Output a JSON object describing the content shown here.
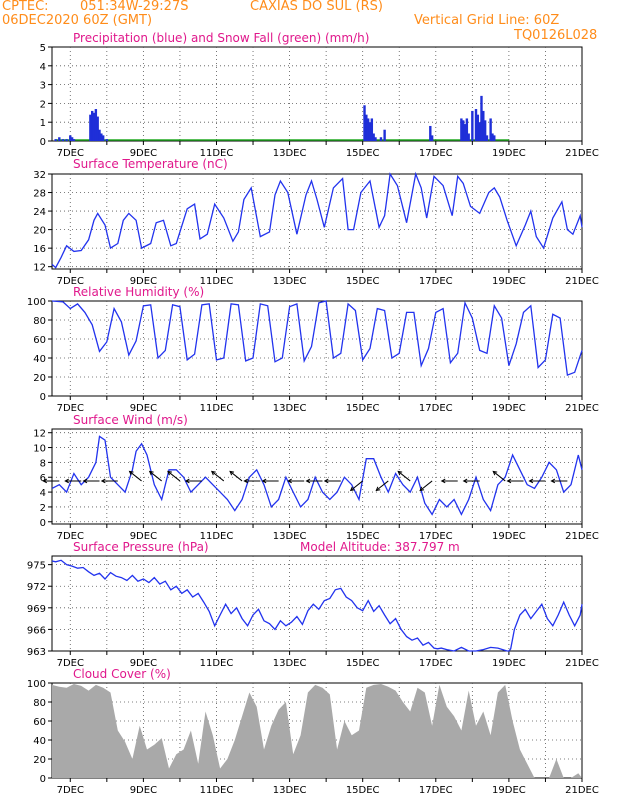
{
  "header": {
    "source": "CPTEC:",
    "coords": "051:34W-29:27S",
    "location": "CAXIAS DO SUL (RS)",
    "run": "06DEC2020 60Z (GMT)",
    "grid_note": "Vertical Grid Line: 60Z",
    "model": "TQ0126L028"
  },
  "colors": {
    "header": "#ff8c1a",
    "title": "#e0188c",
    "line": "#2233ee",
    "precip": "#1f2fd8",
    "snow": "#22aa22",
    "cloud": "#a9a9a9"
  },
  "chart_data": [
    {
      "type": "bar",
      "title": "Precipitation (blue) and Snow Fall (green) (mm/h)",
      "x_ticks": [
        "7DEC",
        "9DEC",
        "11DEC",
        "13DEC",
        "15DEC",
        "17DEC",
        "19DEC",
        "21DEC"
      ],
      "y_ticks": [
        "0",
        "1",
        "2",
        "3",
        "4",
        "5"
      ],
      "ylim": [
        0,
        5
      ],
      "xlim": [
        6.5,
        21.0
      ],
      "snow_values": [],
      "series": [
        {
          "name": "Precipitation",
          "x": [
            6.6,
            6.7,
            6.8,
            6.9,
            7.0,
            7.05,
            7.1,
            7.55,
            7.6,
            7.65,
            7.7,
            7.75,
            7.8,
            7.85,
            7.9,
            8.0,
            15.05,
            15.1,
            15.15,
            15.2,
            15.25,
            15.3,
            15.35,
            15.5,
            15.6,
            16.85,
            16.9,
            17.7,
            17.75,
            17.8,
            17.85,
            17.9,
            18.0,
            18.1,
            18.15,
            18.2,
            18.25,
            18.3,
            18.35,
            18.4,
            18.5,
            18.55,
            18.6
          ],
          "values": [
            0.1,
            0.2,
            0.1,
            0.1,
            0.3,
            0.2,
            0.1,
            1.4,
            1.6,
            1.5,
            1.7,
            1.3,
            0.6,
            0.4,
            0.3,
            0.1,
            1.9,
            1.4,
            1.2,
            1.0,
            1.2,
            0.4,
            0.2,
            0.2,
            0.6,
            0.8,
            0.3,
            1.2,
            1.1,
            0.9,
            1.2,
            0.4,
            1.6,
            1.7,
            1.4,
            1.0,
            2.4,
            1.6,
            1.1,
            0.3,
            1.2,
            0.4,
            0.3
          ]
        }
      ]
    },
    {
      "type": "line",
      "title": "Surface Temperature (nC)",
      "x_ticks": [
        "7DEC",
        "9DEC",
        "11DEC",
        "13DEC",
        "15DEC",
        "17DEC",
        "19DEC",
        "21DEC"
      ],
      "y_ticks": [
        "12",
        "16",
        "20",
        "24",
        "28",
        "32"
      ],
      "ylim": [
        11.5,
        32
      ],
      "xlim": [
        6.5,
        21.0
      ],
      "x": [
        6.5,
        6.6,
        6.75,
        6.9,
        7.1,
        7.3,
        7.5,
        7.65,
        7.75,
        7.95,
        8.1,
        8.3,
        8.45,
        8.6,
        8.8,
        8.95,
        9.2,
        9.35,
        9.55,
        9.75,
        9.9,
        10.2,
        10.4,
        10.55,
        10.75,
        10.95,
        11.2,
        11.45,
        11.6,
        11.75,
        11.95,
        12.2,
        12.45,
        12.6,
        12.75,
        12.95,
        13.2,
        13.45,
        13.6,
        13.75,
        13.95,
        14.2,
        14.45,
        14.6,
        14.75,
        14.95,
        15.2,
        15.45,
        15.6,
        15.75,
        15.95,
        16.2,
        16.45,
        16.6,
        16.75,
        16.95,
        17.2,
        17.45,
        17.6,
        17.75,
        17.95,
        18.2,
        18.45,
        18.6,
        18.75,
        18.95,
        19.2,
        19.45,
        19.6,
        19.75,
        19.95,
        20.2,
        20.45,
        20.6,
        20.75,
        20.95,
        21.0
      ],
      "series": [
        {
          "name": "Temperature",
          "values": [
            12.5,
            11.8,
            14,
            16.5,
            15.3,
            15.5,
            17.8,
            22,
            23.5,
            21,
            16,
            17,
            22,
            23.5,
            22,
            16,
            17,
            21.5,
            22,
            16.5,
            17,
            24.5,
            25.5,
            18,
            19,
            25.5,
            22.5,
            17.5,
            19.5,
            26.5,
            29,
            18.5,
            19.5,
            27.5,
            30.5,
            28,
            19,
            27.5,
            30.5,
            26.5,
            20.5,
            29,
            31,
            20,
            20,
            28,
            30.5,
            20.5,
            23,
            32,
            29.5,
            21.5,
            32,
            29,
            22.5,
            31.5,
            29.5,
            23,
            31.5,
            30,
            25,
            23.5,
            28,
            29,
            27,
            22,
            16.5,
            21,
            24,
            18.5,
            16,
            22.5,
            26,
            20,
            19,
            23,
            20.5
          ]
        }
      ]
    },
    {
      "type": "line",
      "title": "Relative Humidity (%)",
      "x_ticks": [
        "7DEC",
        "9DEC",
        "11DEC",
        "13DEC",
        "15DEC",
        "17DEC",
        "19DEC",
        "21DEC"
      ],
      "y_ticks": [
        "0",
        "20",
        "40",
        "60",
        "80",
        "100"
      ],
      "ylim": [
        0,
        100
      ],
      "xlim": [
        6.5,
        21.0
      ],
      "x": [
        6.5,
        6.8,
        7.0,
        7.2,
        7.4,
        7.6,
        7.8,
        8.0,
        8.2,
        8.4,
        8.6,
        8.8,
        9.0,
        9.2,
        9.4,
        9.6,
        9.8,
        10.0,
        10.2,
        10.4,
        10.6,
        10.8,
        11.0,
        11.2,
        11.4,
        11.6,
        11.8,
        12.0,
        12.2,
        12.4,
        12.6,
        12.8,
        13.0,
        13.2,
        13.4,
        13.6,
        13.8,
        14.0,
        14.2,
        14.4,
        14.6,
        14.8,
        15.0,
        15.2,
        15.4,
        15.6,
        15.8,
        16.0,
        16.2,
        16.4,
        16.6,
        16.8,
        17.0,
        17.2,
        17.4,
        17.6,
        17.8,
        18.0,
        18.2,
        18.4,
        18.6,
        18.8,
        19.0,
        19.2,
        19.4,
        19.6,
        19.8,
        20.0,
        20.2,
        20.4,
        20.6,
        20.8,
        21.0
      ],
      "series": [
        {
          "name": "Humidity",
          "values": [
            100,
            99,
            92,
            97,
            88,
            75,
            47,
            57,
            92,
            78,
            43,
            58,
            95,
            96,
            40,
            48,
            96,
            94,
            38,
            44,
            96,
            97,
            38,
            40,
            97,
            96,
            37,
            40,
            97,
            95,
            36,
            40,
            94,
            97,
            37,
            52,
            98,
            100,
            40,
            45,
            97,
            90,
            38,
            50,
            92,
            90,
            40,
            45,
            88,
            88,
            32,
            50,
            88,
            92,
            35,
            45,
            98,
            82,
            48,
            45,
            95,
            82,
            32,
            55,
            88,
            95,
            30,
            38,
            86,
            82,
            22,
            25,
            48
          ]
        }
      ]
    },
    {
      "type": "line",
      "title": "Surface Wind (m/s)",
      "x_ticks": [
        "7DEC",
        "9DEC",
        "11DEC",
        "13DEC",
        "15DEC",
        "17DEC",
        "19DEC",
        "21DEC"
      ],
      "y_ticks": [
        "0",
        "2",
        "4",
        "6",
        "8",
        "10",
        "12"
      ],
      "ylim": [
        -0.3,
        12.5
      ],
      "xlim": [
        6.5,
        21.0
      ],
      "x": [
        6.5,
        6.7,
        6.9,
        7.1,
        7.3,
        7.5,
        7.7,
        7.8,
        7.95,
        8.1,
        8.3,
        8.5,
        8.7,
        8.8,
        8.95,
        9.1,
        9.3,
        9.5,
        9.7,
        9.9,
        10.1,
        10.3,
        10.5,
        10.7,
        10.9,
        11.1,
        11.3,
        11.5,
        11.7,
        11.9,
        12.1,
        12.3,
        12.5,
        12.7,
        12.9,
        13.1,
        13.3,
        13.5,
        13.7,
        13.9,
        14.1,
        14.3,
        14.5,
        14.7,
        14.9,
        15.1,
        15.3,
        15.5,
        15.7,
        15.9,
        16.1,
        16.3,
        16.5,
        16.7,
        16.9,
        17.1,
        17.3,
        17.5,
        17.7,
        17.9,
        18.1,
        18.3,
        18.5,
        18.7,
        18.9,
        19.1,
        19.3,
        19.5,
        19.7,
        19.9,
        20.1,
        20.3,
        20.5,
        20.7,
        20.9,
        21.0
      ],
      "series": [
        {
          "name": "Wind",
          "values": [
            4.5,
            5,
            4,
            6.5,
            5,
            6,
            8,
            11.5,
            11,
            6,
            5,
            4,
            7,
            9.5,
            10.5,
            9,
            5,
            3,
            7,
            7,
            6,
            4,
            5,
            6,
            5,
            4,
            3,
            1.5,
            3,
            6,
            7,
            5,
            2,
            3,
            6,
            4,
            2,
            3,
            6,
            4,
            3,
            4,
            6,
            5,
            3,
            8.5,
            8.5,
            6,
            4,
            6.5,
            5,
            4,
            6,
            2.5,
            1,
            3,
            2,
            3,
            1,
            3,
            6,
            3,
            1.5,
            5,
            6,
            9,
            7,
            5,
            4.5,
            6,
            8,
            7,
            4,
            5,
            9,
            7
          ]
        }
      ],
      "vectors": [
        {
          "x": 6.7,
          "dir": "W"
        },
        {
          "x": 7.3,
          "dir": "W"
        },
        {
          "x": 7.8,
          "dir": "W"
        },
        {
          "x": 8.3,
          "dir": "W"
        },
        {
          "x": 8.95,
          "dir": "NW"
        },
        {
          "x": 9.5,
          "dir": "NW"
        },
        {
          "x": 10.0,
          "dir": "NW"
        },
        {
          "x": 10.6,
          "dir": "W"
        },
        {
          "x": 11.2,
          "dir": "NW"
        },
        {
          "x": 11.7,
          "dir": "NW"
        },
        {
          "x": 12.2,
          "dir": "W"
        },
        {
          "x": 12.7,
          "dir": "W"
        },
        {
          "x": 13.4,
          "dir": "W"
        },
        {
          "x": 13.9,
          "dir": "W"
        },
        {
          "x": 14.4,
          "dir": "W"
        },
        {
          "x": 15.0,
          "dir": "SW"
        },
        {
          "x": 15.7,
          "dir": "SW"
        },
        {
          "x": 16.3,
          "dir": "NW"
        },
        {
          "x": 16.9,
          "dir": "SW"
        },
        {
          "x": 17.6,
          "dir": "W"
        },
        {
          "x": 18.2,
          "dir": "W"
        },
        {
          "x": 18.9,
          "dir": "NW"
        },
        {
          "x": 19.4,
          "dir": "W"
        },
        {
          "x": 20.0,
          "dir": "W"
        },
        {
          "x": 20.6,
          "dir": "W"
        }
      ]
    },
    {
      "type": "line",
      "title": "Surface Pressure (hPa)",
      "annotation": "Model Altitude: 387.797 m",
      "x_ticks": [
        "7DEC",
        "9DEC",
        "11DEC",
        "13DEC",
        "15DEC",
        "17DEC",
        "19DEC",
        "21DEC"
      ],
      "y_ticks": [
        "963",
        "966",
        "969",
        "972",
        "975"
      ],
      "ylim": [
        963,
        976.2
      ],
      "xlim": [
        6.5,
        21.0
      ],
      "x": [
        6.5,
        6.6,
        6.75,
        6.9,
        7.05,
        7.2,
        7.35,
        7.5,
        7.65,
        7.8,
        7.95,
        8.1,
        8.25,
        8.4,
        8.55,
        8.7,
        8.85,
        9.0,
        9.15,
        9.3,
        9.45,
        9.6,
        9.75,
        9.9,
        10.05,
        10.2,
        10.35,
        10.5,
        10.65,
        10.8,
        10.95,
        11.1,
        11.25,
        11.4,
        11.55,
        11.7,
        11.85,
        12.0,
        12.15,
        12.3,
        12.45,
        12.6,
        12.75,
        12.9,
        13.05,
        13.2,
        13.35,
        13.5,
        13.65,
        13.8,
        13.95,
        14.1,
        14.25,
        14.4,
        14.55,
        14.7,
        14.85,
        15.0,
        15.15,
        15.3,
        15.45,
        15.6,
        15.75,
        15.9,
        16.05,
        16.2,
        16.35,
        16.5,
        16.65,
        16.8,
        16.95,
        17.05,
        17.15,
        17.3,
        17.5,
        17.7,
        17.9,
        18.1,
        18.3,
        18.5,
        18.7,
        18.95,
        19.0,
        19.05,
        19.15,
        19.3,
        19.45,
        19.6,
        19.75,
        19.9,
        20.05,
        20.2,
        20.35,
        20.5,
        20.65,
        20.8,
        20.95,
        21.0
      ],
      "series": [
        {
          "name": "Pressure",
          "values": [
            975.5,
            975.4,
            975.6,
            975,
            974.8,
            974.5,
            974.6,
            974,
            973.5,
            973.8,
            973,
            973.9,
            973.4,
            973.2,
            972.8,
            973.5,
            972.7,
            973,
            972.5,
            973.2,
            972.3,
            972.7,
            971.5,
            972,
            971,
            971.5,
            970.5,
            971,
            969.8,
            968.5,
            966.5,
            968,
            969.5,
            968.2,
            969,
            967.5,
            966.5,
            968,
            968.8,
            967.2,
            966.8,
            966,
            967.2,
            966.5,
            967,
            967.8,
            966.7,
            968.6,
            969.5,
            968.8,
            970,
            970.3,
            971.5,
            971.7,
            970.5,
            970,
            969,
            968.6,
            970,
            968.5,
            969.3,
            968,
            966.8,
            967.5,
            966,
            965,
            964.5,
            964.8,
            963.8,
            964.2,
            963.4,
            963.3,
            963.4,
            963.2,
            962.9,
            963.5,
            963,
            962.8,
            963.2,
            963.5,
            963.4,
            962.8,
            963.0,
            963.3,
            966,
            968,
            968.8,
            967.5,
            968.5,
            969.5,
            967.5,
            966.5,
            968,
            969.8,
            968,
            966.5,
            968,
            969.5
          ]
        }
      ]
    },
    {
      "type": "area",
      "title": "Cloud Cover (%)",
      "x_ticks": [
        "7DEC",
        "9DEC",
        "11DEC",
        "13DEC",
        "15DEC",
        "17DEC",
        "19DEC",
        "21DEC"
      ],
      "y_ticks": [
        "0",
        "20",
        "40",
        "60",
        "80",
        "100"
      ],
      "ylim": [
        0,
        100
      ],
      "xlim": [
        6.5,
        21.0
      ],
      "x": [
        6.5,
        6.7,
        6.9,
        7.1,
        7.3,
        7.5,
        7.7,
        7.9,
        8.1,
        8.3,
        8.5,
        8.7,
        8.9,
        9.1,
        9.3,
        9.5,
        9.7,
        9.9,
        10.1,
        10.3,
        10.5,
        10.7,
        10.9,
        11.1,
        11.3,
        11.5,
        11.7,
        11.9,
        12.1,
        12.3,
        12.5,
        12.7,
        12.9,
        13.1,
        13.3,
        13.5,
        13.7,
        13.9,
        14.1,
        14.3,
        14.5,
        14.7,
        14.9,
        15.1,
        15.3,
        15.5,
        15.7,
        15.9,
        16.1,
        16.3,
        16.5,
        16.7,
        16.9,
        17.1,
        17.3,
        17.5,
        17.7,
        17.9,
        18.1,
        18.3,
        18.5,
        18.7,
        18.9,
        19.1,
        19.3,
        19.5,
        19.7,
        19.9,
        20.1,
        20.3,
        20.5,
        20.7,
        20.9,
        21.0
      ],
      "series": [
        {
          "name": "Cloud",
          "values": [
            98,
            96,
            95,
            99,
            97,
            92,
            98,
            95,
            90,
            50,
            38,
            20,
            55,
            30,
            35,
            42,
            10,
            25,
            30,
            50,
            15,
            70,
            45,
            10,
            20,
            40,
            65,
            90,
            75,
            30,
            55,
            72,
            80,
            25,
            45,
            90,
            98,
            95,
            88,
            30,
            60,
            45,
            50,
            95,
            98,
            99,
            96,
            92,
            80,
            70,
            95,
            90,
            55,
            98,
            75,
            65,
            50,
            92,
            55,
            70,
            45,
            90,
            98,
            60,
            30,
            15,
            0,
            0,
            0,
            20,
            0,
            0,
            5,
            0
          ]
        }
      ]
    }
  ]
}
